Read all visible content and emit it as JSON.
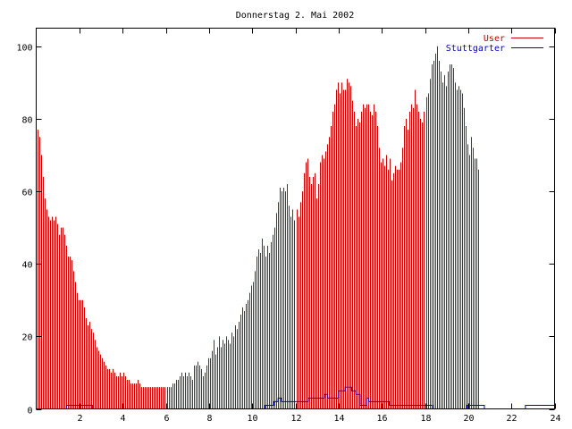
{
  "chart_data": {
    "type": "bar",
    "title": "Donnerstag 2. Mai 2002",
    "xlabel": "",
    "ylabel": "",
    "xlim": [
      0,
      24
    ],
    "ylim": [
      0,
      105
    ],
    "x_ticks": [
      2,
      4,
      6,
      8,
      10,
      12,
      14,
      16,
      18,
      20,
      22,
      24
    ],
    "y_ticks": [
      0,
      20,
      40,
      60,
      80,
      100
    ],
    "grid": false,
    "legend_position": "top-right",
    "series": [
      {
        "name": "User",
        "color": "#cc0000",
        "style": "impulses",
        "samples_per_hour": 12,
        "values": [
          77,
          75,
          70,
          64,
          58,
          55,
          53,
          52,
          53,
          52,
          53,
          51,
          48,
          50,
          50,
          48,
          45,
          42,
          42,
          41,
          38,
          35,
          32,
          30,
          30,
          30,
          28,
          25,
          23,
          24,
          22,
          21,
          19,
          17,
          16,
          15,
          14,
          13,
          12,
          11,
          11,
          10,
          11,
          10,
          9,
          9,
          10,
          9,
          10,
          9,
          8,
          8,
          7,
          7,
          7,
          7,
          8,
          7,
          6,
          6,
          6,
          6,
          6,
          6,
          6,
          6,
          6,
          6,
          6,
          6,
          6,
          6,
          6,
          6,
          6,
          7,
          7,
          8,
          8,
          9,
          10,
          9,
          10,
          9,
          10,
          9,
          8,
          12,
          12,
          13,
          12,
          11,
          9,
          10,
          12,
          14,
          14,
          16,
          19,
          15,
          17,
          20,
          17,
          19,
          18,
          20,
          19,
          18,
          21,
          20,
          23,
          22,
          24,
          26,
          28,
          27,
          29,
          30,
          32,
          34,
          35,
          38,
          42,
          44,
          43,
          47,
          45,
          42,
          45,
          43,
          46,
          48,
          50,
          54,
          57,
          61,
          60,
          61,
          60,
          62,
          56,
          53,
          55,
          52,
          55,
          53,
          57,
          60,
          65,
          68,
          69,
          64,
          62,
          64,
          65,
          58,
          62,
          68,
          70,
          69,
          71,
          73,
          75,
          78,
          82,
          84,
          88,
          90,
          87,
          90,
          88,
          88,
          91,
          90,
          89,
          85,
          82,
          78,
          80,
          79,
          82,
          84,
          83,
          84,
          84,
          82,
          81,
          84,
          82,
          78,
          72,
          68,
          69,
          67,
          70,
          66,
          69,
          63,
          65,
          67,
          66,
          66,
          68,
          72,
          78,
          80,
          77,
          82,
          84,
          83,
          88,
          84,
          82,
          80,
          79,
          82,
          86,
          87,
          91,
          95,
          96,
          98,
          100,
          96,
          93,
          90,
          92,
          89,
          93,
          95,
          95,
          94,
          90,
          88,
          89,
          88,
          87,
          83,
          78,
          73,
          70,
          75,
          72,
          69,
          69,
          66
        ]
      },
      {
        "name": "Stuttgarter",
        "color": "#0000cc",
        "style": "steps",
        "points": [
          [
            0,
            0
          ],
          [
            1.35,
            0
          ],
          [
            1.4,
            1
          ],
          [
            2.55,
            1
          ],
          [
            2.6,
            0
          ],
          [
            10.55,
            0
          ],
          [
            10.6,
            1
          ],
          [
            11.0,
            2
          ],
          [
            11.2,
            3
          ],
          [
            11.35,
            2
          ],
          [
            12.5,
            2
          ],
          [
            12.6,
            3
          ],
          [
            13.3,
            3
          ],
          [
            13.35,
            4
          ],
          [
            13.5,
            3
          ],
          [
            13.9,
            3
          ],
          [
            14.0,
            5
          ],
          [
            14.3,
            6
          ],
          [
            14.6,
            5
          ],
          [
            14.8,
            4
          ],
          [
            15.0,
            1
          ],
          [
            15.25,
            1
          ],
          [
            15.3,
            3
          ],
          [
            15.4,
            2
          ],
          [
            16.3,
            2
          ],
          [
            16.35,
            1
          ],
          [
            18.3,
            1
          ],
          [
            18.35,
            0
          ],
          [
            19.9,
            0
          ],
          [
            19.95,
            1
          ],
          [
            20.7,
            1
          ],
          [
            20.75,
            0
          ],
          [
            22.6,
            0
          ],
          [
            22.65,
            1
          ],
          [
            24,
            1
          ]
        ]
      }
    ]
  }
}
